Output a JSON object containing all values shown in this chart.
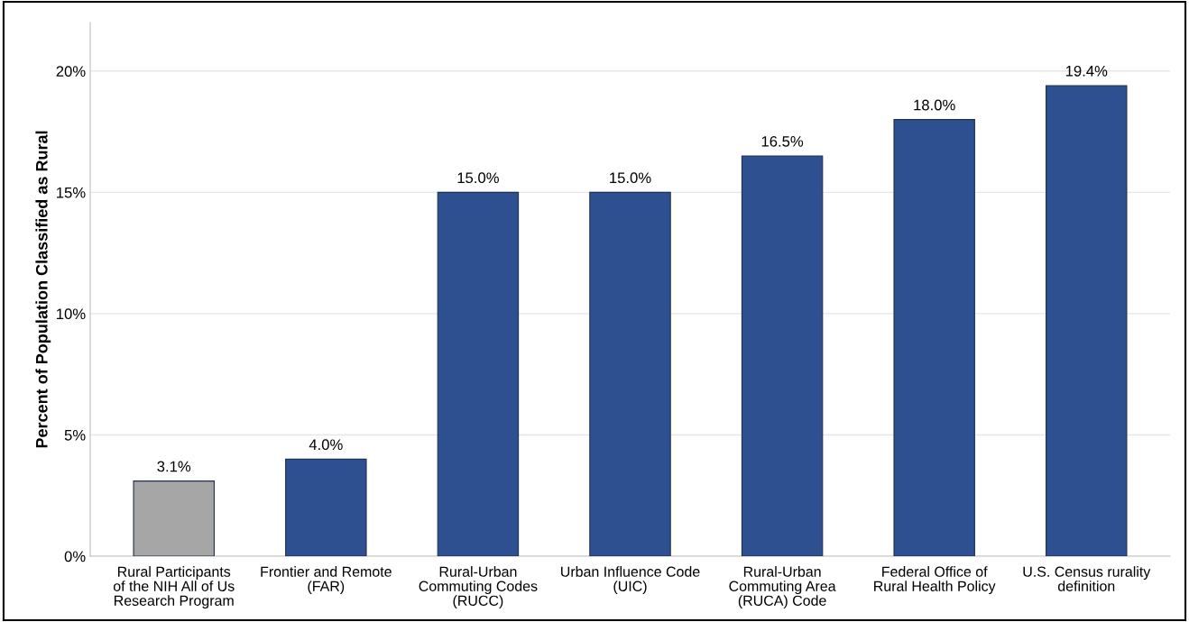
{
  "chart_data": {
    "type": "bar",
    "ylabel": "Percent of Population Classified as Rural",
    "categories": [
      "Rural Participants of the NIH All of Us Research Program",
      "Frontier and Remote (FAR)",
      "Rural-Urban Commuting Codes (RUCC)",
      "Urban Influence Code (UIC)",
      "Rural-Urban Commuting Area (RUCA) Code",
      "Federal Office of Rural Health Policy",
      "U.S. Census rurality definition"
    ],
    "values": [
      3.1,
      4.0,
      15.0,
      15.0,
      16.5,
      18.0,
      19.4
    ],
    "value_labels": [
      "3.1%",
      "4.0%",
      "15.0%",
      "15.0%",
      "16.5%",
      "18.0%",
      "19.4%"
    ],
    "colors": [
      "#a6a6a6",
      "#2e5090",
      "#2e5090",
      "#2e5090",
      "#2e5090",
      "#2e5090",
      "#2e5090"
    ],
    "ylim": [
      0,
      22
    ],
    "yticks": [
      {
        "value": 0,
        "label": "0%"
      },
      {
        "value": 5,
        "label": "5%"
      },
      {
        "value": 10,
        "label": "10%"
      },
      {
        "value": 15,
        "label": "15%"
      },
      {
        "value": 20,
        "label": "20%"
      }
    ],
    "grid": "y",
    "legend": false
  }
}
